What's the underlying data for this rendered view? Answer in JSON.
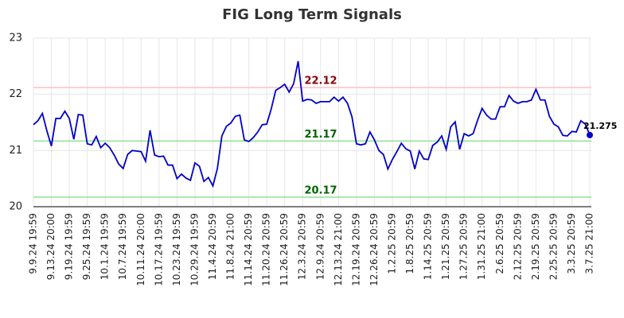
{
  "chart_data": {
    "type": "line",
    "title": "FIG Long Term Signals",
    "categories": [
      "9.9.24 19:59",
      null,
      null,
      null,
      "9.13.24 20:00",
      null,
      null,
      null,
      "9.19.24 19:59",
      null,
      null,
      null,
      "9.25.24 19:59",
      null,
      null,
      null,
      "10.1.24 19:59",
      null,
      null,
      null,
      "10.7.24 19:59",
      null,
      null,
      null,
      "10.11.24 20:00",
      null,
      null,
      null,
      "10.17.24 19:59",
      null,
      null,
      null,
      "10.23.24 19:59",
      null,
      null,
      null,
      "10.29.24 19:59",
      null,
      null,
      null,
      "11.4.24 20:59",
      null,
      null,
      null,
      "11.8.24 21:00",
      null,
      null,
      null,
      "11.14.24 20:59",
      null,
      null,
      null,
      "11.20.24 20:59",
      null,
      null,
      null,
      "11.26.24 20:59",
      null,
      null,
      null,
      "12.3.24 20:59",
      null,
      null,
      null,
      "12.9.24 20:59",
      null,
      null,
      null,
      "12.13.24 21:00",
      null,
      null,
      null,
      "12.19.24 20:59",
      null,
      null,
      null,
      "12.26.24 20:59",
      null,
      null,
      null,
      "1.2.25 20:59",
      null,
      null,
      null,
      "1.8.25 20:59",
      null,
      null,
      null,
      "1.14.25 20:59",
      null,
      null,
      null,
      "1.21.25 20:59",
      null,
      null,
      null,
      "1.27.25 20:59",
      null,
      null,
      null,
      "1.31.25 21:00",
      null,
      null,
      null,
      "2.6.25 20:59",
      null,
      null,
      null,
      "2.12.25 20:59",
      null,
      null,
      null,
      "2.19.25 20:59",
      null,
      null,
      null,
      "2.25.25 20:59",
      null,
      null,
      null,
      "3.3.25 20:59",
      null,
      null,
      null,
      "3.7.25 21:00"
    ],
    "values": [
      21.46,
      21.53,
      21.66,
      21.35,
      21.08,
      21.57,
      21.57,
      21.7,
      21.57,
      21.2,
      21.64,
      21.63,
      21.12,
      21.1,
      21.25,
      21.05,
      21.13,
      21.05,
      20.92,
      20.76,
      20.68,
      20.93,
      21.0,
      20.99,
      20.98,
      20.81,
      21.36,
      20.92,
      20.89,
      20.9,
      20.74,
      20.74,
      20.5,
      20.58,
      20.51,
      20.47,
      20.78,
      20.72,
      20.45,
      20.52,
      20.37,
      20.68,
      21.26,
      21.43,
      21.49,
      21.61,
      21.63,
      21.19,
      21.16,
      21.23,
      21.33,
      21.46,
      21.47,
      21.74,
      22.07,
      22.12,
      22.18,
      22.04,
      22.19,
      22.59,
      21.88,
      21.91,
      21.9,
      21.84,
      21.87,
      21.87,
      21.87,
      21.95,
      21.88,
      21.95,
      21.84,
      21.6,
      21.12,
      21.1,
      21.12,
      21.33,
      21.19,
      21.0,
      20.93,
      20.67,
      20.84,
      20.98,
      21.13,
      21.03,
      20.99,
      20.67,
      20.99,
      20.85,
      20.84,
      21.09,
      21.15,
      21.26,
      21.02,
      21.42,
      21.51,
      21.02,
      21.3,
      21.26,
      21.3,
      21.54,
      21.75,
      21.63,
      21.56,
      21.56,
      21.78,
      21.78,
      21.98,
      21.88,
      21.84,
      21.87,
      21.87,
      21.9,
      22.09,
      21.9,
      21.9,
      21.61,
      21.47,
      21.42,
      21.27,
      21.26,
      21.34,
      21.33,
      21.53,
      21.47,
      21.275
    ],
    "color": "#0000cc",
    "hlines": [
      {
        "value": 22.12,
        "color": "#ffbfbf",
        "label_color": "#8b0000"
      },
      {
        "value": 21.17,
        "color": "#90e090",
        "label_color": "#006400"
      },
      {
        "value": 20.17,
        "color": "#90e090",
        "label_color": "#006400"
      }
    ],
    "ylim": [
      20,
      23
    ],
    "yticks": [
      20,
      21,
      22,
      23
    ],
    "grid": true
  }
}
